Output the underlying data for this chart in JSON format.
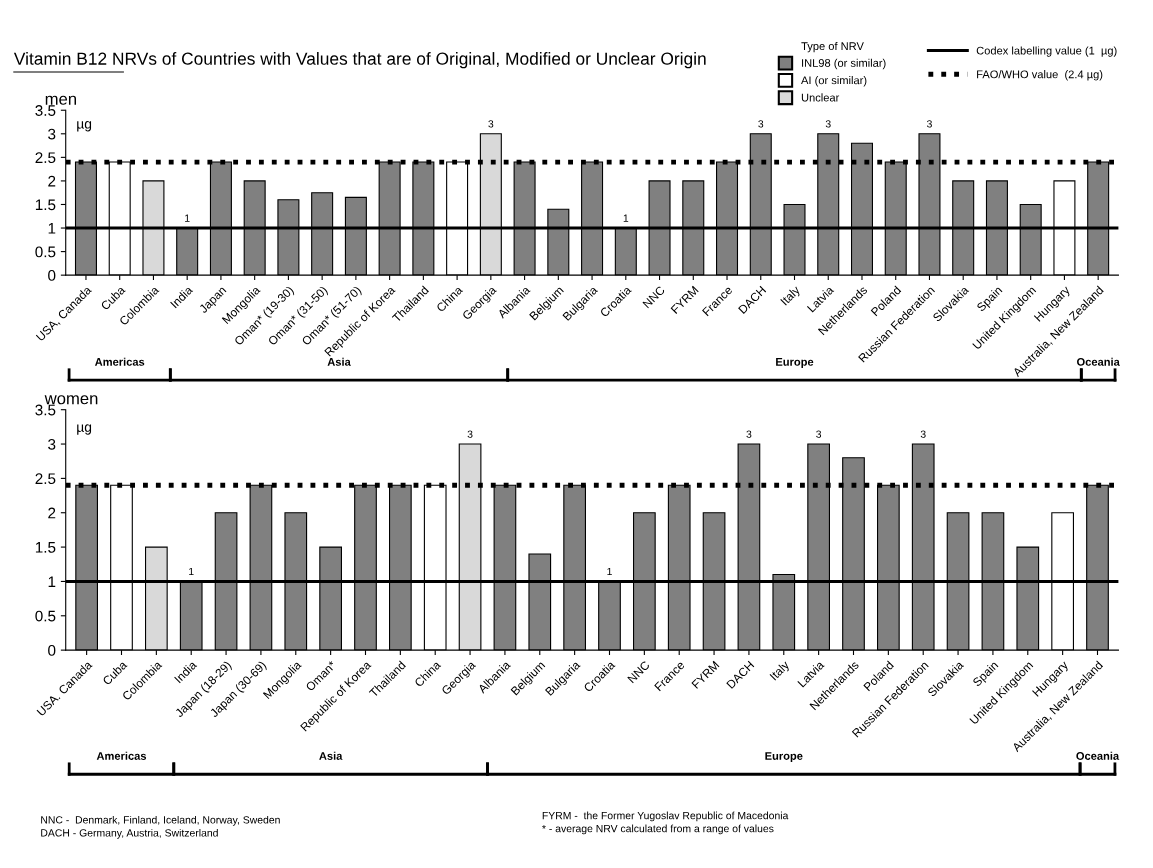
{
  "chart_data": [
    {
      "type": "bar",
      "title": "men",
      "ylabel": "µg",
      "legend_title": "Type of NRV",
      "legend": "top right",
      "categories": [
        "USA, Canada",
        "Cuba",
        "Colombia",
        "India",
        "Japan",
        "Mongolia",
        "Oman* (19-30)",
        "Oman* (31-50)",
        "Oman* (51-70)",
        "Republic of Korea",
        "Thailand",
        "China",
        "Georgia",
        "Albania",
        "Belgium",
        "Bulgaria",
        "Croatia",
        "NNC",
        "FYRM",
        "France",
        "DACH",
        "Italy",
        "Latvia",
        "Netherlands",
        "Poland",
        "Russian Federation",
        "Slovakia",
        "Spain",
        "United Kingdom",
        "Hungary",
        "Australia, New Zealand"
      ],
      "series": [
        {
          "name": "INL98 (or similar)",
          "color": "#808080",
          "values": [
            2.4,
            null,
            null,
            1.0,
            2.4,
            2.0,
            1.6,
            1.75,
            1.65,
            2.4,
            2.4,
            null,
            null,
            2.4,
            1.4,
            2.4,
            1.0,
            2.0,
            2.0,
            2.4,
            3.0,
            1.5,
            3.0,
            2.8,
            2.4,
            3.0,
            2.0,
            2.0,
            1.5,
            null,
            2.4
          ],
          "value_labels": [
            null,
            null,
            null,
            "1",
            null,
            null,
            null,
            null,
            null,
            null,
            null,
            null,
            null,
            null,
            null,
            null,
            "1",
            null,
            null,
            null,
            "3",
            null,
            "3",
            null,
            null,
            "3",
            null,
            null,
            null,
            null,
            null
          ]
        },
        {
          "name": "AI (or similar)",
          "color": "#ffffff",
          "values": [
            null,
            2.4,
            null,
            null,
            null,
            null,
            null,
            null,
            null,
            null,
            null,
            2.4,
            null,
            null,
            null,
            null,
            null,
            null,
            null,
            null,
            null,
            null,
            null,
            null,
            null,
            null,
            null,
            null,
            null,
            2.0,
            null
          ]
        },
        {
          "name": "Unclear",
          "color": "#d9d9d9",
          "values": [
            null,
            null,
            2.0,
            null,
            null,
            null,
            null,
            null,
            null,
            null,
            null,
            null,
            3.0,
            null,
            null,
            null,
            null,
            null,
            null,
            null,
            null,
            null,
            null,
            null,
            null,
            null,
            null,
            null,
            null,
            null,
            null
          ],
          "value_labels": [
            null,
            null,
            null,
            null,
            null,
            null,
            null,
            null,
            null,
            null,
            null,
            null,
            "3",
            null,
            null,
            null,
            null,
            null,
            null,
            null,
            null,
            null,
            null,
            null,
            null,
            null,
            null,
            null,
            null,
            null,
            null
          ]
        }
      ],
      "ylim": [
        0,
        3.5
      ],
      "yticks": [
        0,
        0.5,
        1,
        1.5,
        2,
        2.5,
        3,
        3.5
      ],
      "grid": false,
      "ref_lines": [
        {
          "axis": "y",
          "value": 1,
          "label": "Codex labelling value (1  µg)",
          "line_style": "solid",
          "color": "#000000"
        },
        {
          "axis": "y",
          "value": 2.4,
          "label": "FAO/WHO value  (2.4 µg)",
          "line_style": "dotted",
          "color": "#000000"
        }
      ],
      "annotations": [
        "Vitamin B12 NRVs of Countries with Values that are of Original, Modified or Unclear Origin",
        "Americas",
        "Asia",
        "Europe",
        "Oceania"
      ]
    },
    {
      "type": "bar",
      "title": "women",
      "ylabel": "µg",
      "categories": [
        "USA. Canada",
        "Cuba",
        "Colombia",
        "India",
        "Japan (18-29)",
        "Japan (30-69)",
        "Mongolia",
        "Oman*",
        "Republic of Korea",
        "Thailand",
        "China",
        "Georgia",
        "Albania",
        "Belgium",
        "Bulgaria",
        "Croatia",
        "NNC",
        "France",
        "FYRM",
        "DACH",
        "Italy",
        "Latvia",
        "Netherlands",
        "Poland",
        "Russian Federation",
        "Slovakia",
        "Spain",
        "United Kingdom",
        "Hungary",
        "Australia, New Zealand"
      ],
      "series": [
        {
          "color": "#808080",
          "values": [
            2.4,
            null,
            null,
            1.0,
            2.0,
            2.4,
            2.0,
            1.5,
            2.4,
            2.4,
            null,
            null,
            2.4,
            1.4,
            2.4,
            1.0,
            2.0,
            2.4,
            2.0,
            3.0,
            1.1,
            3.0,
            2.8,
            2.4,
            3.0,
            2.0,
            2.0,
            1.5,
            null,
            2.4
          ],
          "value_labels": [
            null,
            null,
            null,
            "1",
            null,
            null,
            null,
            null,
            null,
            null,
            null,
            null,
            null,
            null,
            null,
            "1",
            null,
            null,
            null,
            "3",
            null,
            "3",
            null,
            null,
            "3",
            null,
            null,
            null,
            null,
            null
          ]
        },
        {
          "color": "#ffffff",
          "values": [
            null,
            2.4,
            null,
            null,
            null,
            null,
            null,
            null,
            null,
            null,
            2.4,
            null,
            null,
            null,
            null,
            null,
            null,
            null,
            null,
            null,
            null,
            null,
            null,
            null,
            null,
            null,
            null,
            null,
            2.0,
            null
          ]
        },
        {
          "color": "#d9d9d9",
          "values": [
            null,
            null,
            1.5,
            null,
            null,
            null,
            null,
            null,
            null,
            null,
            null,
            3.0,
            null,
            null,
            null,
            null,
            null,
            null,
            null,
            null,
            null,
            null,
            null,
            null,
            null,
            null,
            null,
            null,
            null,
            null
          ],
          "value_labels": [
            null,
            null,
            null,
            null,
            null,
            null,
            null,
            null,
            null,
            null,
            null,
            "3",
            null,
            null,
            null,
            null,
            null,
            null,
            null,
            null,
            null,
            null,
            null,
            null,
            null,
            null,
            null,
            null,
            null,
            null
          ]
        }
      ],
      "ylim": [
        0,
        3.5
      ],
      "yticks": [
        0,
        0.5,
        1,
        1.5,
        2,
        2.5,
        3,
        3.5
      ],
      "grid": false,
      "ref_lines": [
        {
          "axis": "y",
          "value": 1,
          "line_style": "solid",
          "color": "#000000"
        },
        {
          "axis": "y",
          "value": 2.4,
          "line_style": "dotted",
          "color": "#000000"
        }
      ],
      "annotations": [
        "Americas",
        "Asia",
        "Europe",
        "Oceania",
        "NNC -  Denmark, Finland, Iceland, Norway, Sweden",
        "DACH - Germany, Austria, Switzerland",
        "FYRM -  the Former Yugoslav Republic of Macedonia",
        "* - average NRV calculated from a range of values"
      ]
    }
  ]
}
